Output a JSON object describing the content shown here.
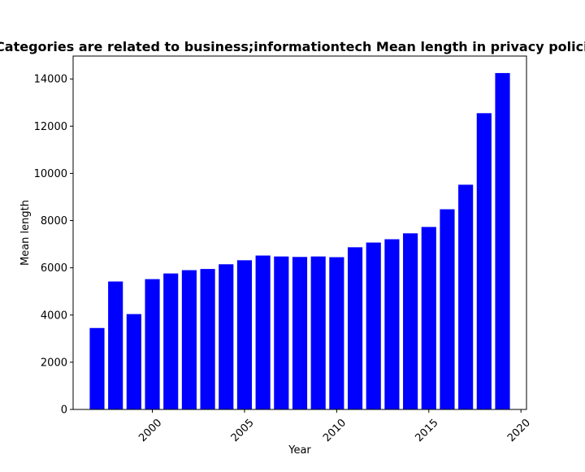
{
  "chart_data": {
    "type": "bar",
    "title": "Categories are related to business;informationtech Mean length in privacy policies",
    "xlabel": "Year",
    "ylabel": "Mean length",
    "x": [
      1997,
      1998,
      1999,
      2000,
      2001,
      2002,
      2003,
      2004,
      2005,
      2006,
      2007,
      2008,
      2009,
      2010,
      2011,
      2012,
      2013,
      2014,
      2015,
      2016,
      2017,
      2018,
      2019
    ],
    "values": [
      3450,
      5420,
      4040,
      5520,
      5760,
      5900,
      5950,
      6150,
      6320,
      6520,
      6480,
      6460,
      6480,
      6450,
      6870,
      7070,
      7210,
      7460,
      7730,
      8480,
      9520,
      12550,
      14250
    ],
    "xlim": [
      1995.7,
      2020.3
    ],
    "ylim": [
      0,
      14970
    ],
    "x_ticks": [
      "2000",
      "2005",
      "2010",
      "2015",
      "2020"
    ],
    "y_ticks": [
      "0",
      "2000",
      "4000",
      "6000",
      "8000",
      "10000",
      "12000",
      "14000"
    ],
    "bar_color": "#0000ff",
    "grid": false,
    "legend": "none"
  }
}
